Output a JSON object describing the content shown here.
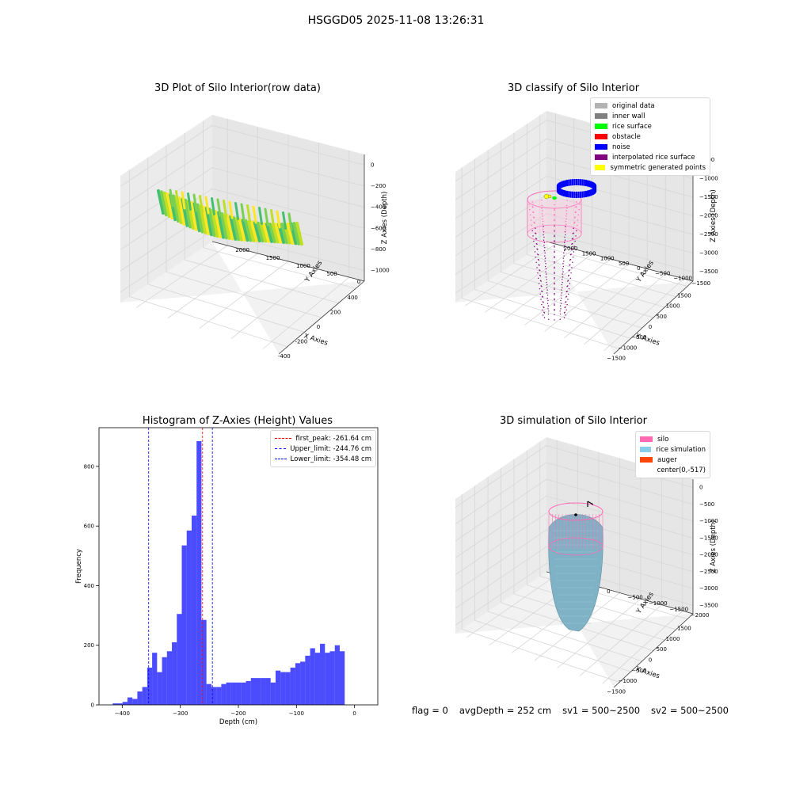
{
  "suptitle": "HSGGD05 2025-11-08 13:26:31",
  "footer": {
    "flag": "flag = 0",
    "avg_depth": "avgDepth = 252 cm",
    "sv1": "sv1 = 500~2500",
    "sv2": "sv2 = 500~2500"
  },
  "chart_data": [
    {
      "type": "scatter",
      "projection": "3d",
      "title": "3D Plot of Silo Interior(row data)",
      "xlabel": "X Axies",
      "ylabel": "Y Axies",
      "zlabel": "Z Axies (Depth)",
      "x_ticks": [
        "-400",
        "-200",
        "0",
        "200",
        "400"
      ],
      "y_ticks": [
        "0",
        "500",
        "1000",
        "1500",
        "2000"
      ],
      "z_ticks": [
        "0",
        "−200",
        "−400",
        "−600",
        "−800",
        "−1000"
      ],
      "colormap": [
        "#44bf70",
        "#7ad151",
        "#bddf26",
        "#fde725"
      ]
    },
    {
      "type": "scatter",
      "projection": "3d",
      "title": "3D classify of Silo Interior",
      "xlabel": "X Axies",
      "ylabel": "Y Axies",
      "zlabel": "Z Axies (Depth)",
      "x_ticks": [
        "−1500",
        "−1000",
        "−500",
        "0",
        "500",
        "1000",
        "1500"
      ],
      "y_ticks": [
        "−1500",
        "−1000",
        "−500",
        "0",
        "500",
        "1000",
        "1500",
        "2000"
      ],
      "z_ticks": [
        "−500",
        "−1000",
        "−1500",
        "−2000",
        "−2500",
        "−3000",
        "−3500"
      ],
      "legend": [
        {
          "label": "original data",
          "color": "#b3b3b3"
        },
        {
          "label": "inner wall",
          "color": "#808080"
        },
        {
          "label": "rice surface",
          "color": "#00ff00"
        },
        {
          "label": "obstacle",
          "color": "#ff0000"
        },
        {
          "label": "noise",
          "color": "#0000ff"
        },
        {
          "label": "interpolated rice surface",
          "color": "#800080"
        },
        {
          "label": "symmetric generated points",
          "color": "#ffff00"
        }
      ]
    },
    {
      "type": "bar",
      "title": "Histogram of Z-Axies (Height) Values",
      "xlabel": "Depth (cm)",
      "ylabel": "Frequency",
      "xlim": [
        -440,
        40
      ],
      "ylim": [
        0,
        930
      ],
      "x_ticks": [
        -400,
        -300,
        -200,
        -100,
        0
      ],
      "x_tick_labels": [
        "−400",
        "−300",
        "−200",
        "−100",
        "0"
      ],
      "y_ticks": [
        0,
        200,
        400,
        600,
        800
      ],
      "bin_start": -425,
      "bin_width": 8.5,
      "values": [
        0,
        5,
        5,
        10,
        25,
        20,
        45,
        60,
        125,
        175,
        110,
        160,
        180,
        210,
        305,
        535,
        585,
        635,
        885,
        285,
        70,
        60,
        60,
        70,
        75,
        75,
        75,
        75,
        80,
        90,
        90,
        90,
        90,
        75,
        115,
        110,
        110,
        125,
        140,
        145,
        165,
        190,
        175,
        205,
        175,
        180,
        200,
        180,
        0
      ],
      "bar_color": "#0000ff",
      "vlines": [
        {
          "label": "first_peak: -261.64 cm",
          "x": -261.64,
          "color": "#ff0000"
        },
        {
          "label": "Upper_limit: -244.76 cm",
          "x": -244.76,
          "color": "#0000ff"
        },
        {
          "label": "Lower_limit: -354.48 cm",
          "x": -354.48,
          "color": "#0000ff"
        }
      ],
      "legend_position": "top-right"
    },
    {
      "type": "scatter",
      "projection": "3d",
      "title": "3D simulation of Silo Interior",
      "xlabel": "X Axies",
      "ylabel": "Y Axies",
      "zlabel": "Z Axies (Depth)",
      "x_ticks": [
        "−1500",
        "−1000",
        "−500",
        "0",
        "500",
        "1000",
        "1500"
      ],
      "y_ticks": [
        "−2000",
        "−1500",
        "−1000",
        "−500",
        "0",
        "500",
        "1000"
      ],
      "z_ticks": [
        "0",
        "−500",
        "−1000",
        "−1500",
        "−2000",
        "−2500",
        "−3000",
        "−3500"
      ],
      "legend": [
        {
          "label": "silo",
          "color": "#ff69b4"
        },
        {
          "label": "rice simulation",
          "color": "#87ceeb"
        },
        {
          "label": "auger",
          "color": "#ff4500"
        },
        {
          "label": "center(0,-517)",
          "color": ""
        }
      ]
    }
  ]
}
